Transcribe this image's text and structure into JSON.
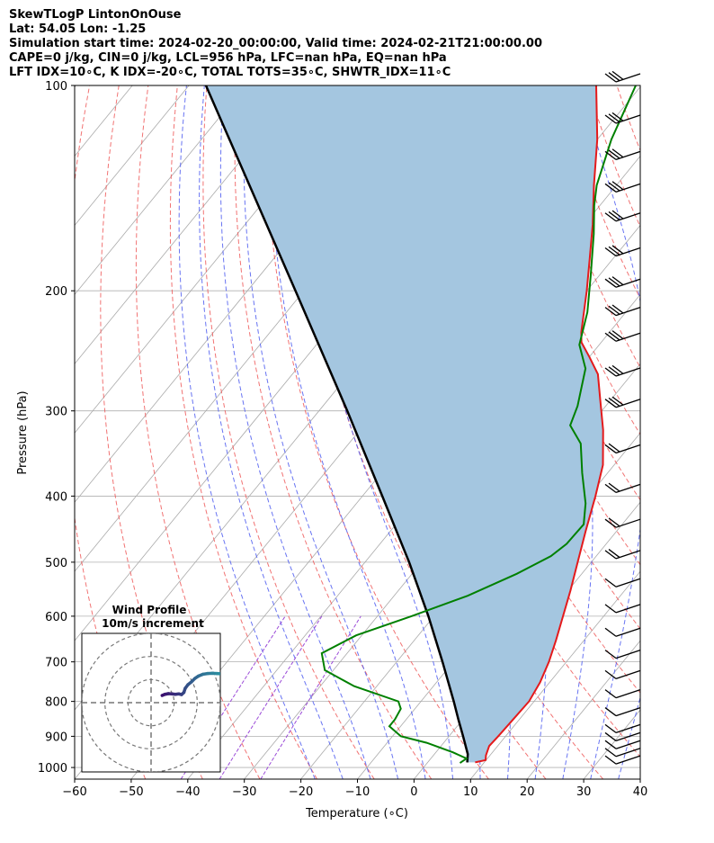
{
  "header": {
    "line1": "SkewTLogP LintonOnOuse",
    "line2": "Lat: 54.05   Lon: -1.25",
    "line3": "Simulation start time: 2024-02-20_00:00:00, Valid time: 2024-02-21T21:00:00.00",
    "line4": "CAPE=0 j/kg, CIN=0 j/kg, LCL=956 hPa, LFC=nan hPa, EQ=nan hPa",
    "line5": "LFT IDX=10∘C, K IDX=-20∘C, TOTAL TOTS=35∘C, SHWTR_IDX=11∘C"
  },
  "chart_data": [
    {
      "type": "line",
      "xlabel": "Temperature (∘C)",
      "ylabel": "Pressure (hPa)",
      "xlim": [
        -60,
        40
      ],
      "ylim": [
        1040,
        100
      ],
      "yscale": "log",
      "skew": "skew-T",
      "grid": true,
      "x_ticks": [
        -60,
        -50,
        -40,
        -30,
        -20,
        -10,
        0,
        10,
        20,
        30,
        40
      ],
      "y_ticks": [
        1000,
        900,
        800,
        700,
        600,
        500,
        400,
        300,
        200,
        100
      ],
      "colors": {
        "temperature": "#e41a1c",
        "dewpoint": "#008000",
        "parcel": "#000000",
        "cape_fill": "#a4c6e0",
        "dry_adiabat": "#ef5b5b",
        "moist_adiabat": "#4d5cf0",
        "mixing_ratio": "#9b4bd8",
        "isotherm": "#aaaaaa"
      },
      "series": [
        {
          "key": "temperature",
          "points": [
            [
              983,
              8.4
            ],
            [
              975,
              9.9
            ],
            [
              960,
              9.3
            ],
            [
              930,
              8.5
            ],
            [
              900,
              8.7
            ],
            [
              850,
              8.9
            ],
            [
              800,
              9.1
            ],
            [
              750,
              8.3
            ],
            [
              700,
              6.9
            ],
            [
              650,
              5.0
            ],
            [
              600,
              2.8
            ],
            [
              550,
              0.4
            ],
            [
              500,
              -2.4
            ],
            [
              450,
              -5.5
            ],
            [
              400,
              -8.8
            ],
            [
              360,
              -12.0
            ],
            [
              320,
              -17.0
            ],
            [
              290,
              -21.7
            ],
            [
              265,
              -26.0
            ],
            [
              250,
              -30.0
            ],
            [
              238,
              -33.5
            ],
            [
              230,
              -35.0
            ],
            [
              200,
              -40.0
            ],
            [
              180,
              -44.0
            ],
            [
              160,
              -48.5
            ],
            [
              140,
              -54.0
            ],
            [
              120,
              -60.0
            ],
            [
              100,
              -68.0
            ]
          ]
        },
        {
          "key": "dewpoint",
          "points": [
            [
              985,
              5.8
            ],
            [
              970,
              6.3
            ],
            [
              950,
              3.0
            ],
            [
              920,
              -3.0
            ],
            [
              900,
              -8.5
            ],
            [
              870,
              -12.0
            ],
            [
              850,
              -12.0
            ],
            [
              820,
              -12.5
            ],
            [
              800,
              -14.0
            ],
            [
              760,
              -24.0
            ],
            [
              720,
              -31.5
            ],
            [
              680,
              -34.5
            ],
            [
              640,
              -31.0
            ],
            [
              600,
              -24.0
            ],
            [
              560,
              -17.0
            ],
            [
              520,
              -11.5
            ],
            [
              490,
              -8.0
            ],
            [
              470,
              -7.0
            ],
            [
              440,
              -6.8
            ],
            [
              410,
              -9.5
            ],
            [
              370,
              -14.5
            ],
            [
              335,
              -19.0
            ],
            [
              315,
              -23.5
            ],
            [
              295,
              -25.0
            ],
            [
              260,
              -29.0
            ],
            [
              240,
              -33.5
            ],
            [
              215,
              -36.8
            ],
            [
              190,
              -41.5
            ],
            [
              165,
              -47.0
            ],
            [
              150,
              -51.0
            ],
            [
              140,
              -53.5
            ],
            [
              120,
              -57.5
            ],
            [
              100,
              -61.0
            ]
          ]
        },
        {
          "key": "parcel",
          "points": [
            [
              983,
              7.0
            ],
            [
              956,
              5.9
            ],
            [
              900,
              2.5
            ],
            [
              850,
              -0.8
            ],
            [
              800,
              -4.2
            ],
            [
              700,
              -11.9
            ],
            [
              600,
              -21.0
            ],
            [
              500,
              -32.2
            ],
            [
              400,
              -46.5
            ],
            [
              300,
              -65.0
            ],
            [
              200,
              -91.5
            ],
            [
              100,
              -137.0
            ]
          ]
        }
      ],
      "wind_barbs_pressure_levels": [
        1000,
        975,
        950,
        925,
        900,
        850,
        800,
        750,
        700,
        650,
        600,
        550,
        500,
        450,
        400,
        350,
        300,
        270,
        240,
        220,
        200,
        180,
        160,
        145,
        130,
        115,
        100
      ]
    },
    {
      "type": "line",
      "title": "Wind Profile",
      "subtitle": "10m/s increment",
      "xlim": [
        -30,
        30
      ],
      "ylim": [
        -30,
        30
      ],
      "rings": [
        10,
        20,
        30
      ],
      "colors": {
        "trace_low": "#3b0f6f",
        "trace_high": "#2c8c9f",
        "rings": "#777777"
      },
      "hodograph_uv": [
        [
          4.8,
          3.1
        ],
        [
          6.0,
          3.6
        ],
        [
          7.5,
          3.9
        ],
        [
          9.0,
          3.8
        ],
        [
          10.5,
          3.6
        ],
        [
          12.0,
          3.8
        ],
        [
          13.2,
          3.5
        ],
        [
          14.2,
          4.4
        ],
        [
          14.8,
          6.2
        ],
        [
          16.0,
          7.8
        ],
        [
          17.5,
          9.0
        ],
        [
          19.0,
          10.5
        ],
        [
          20.5,
          11.5
        ],
        [
          22.5,
          12.3
        ],
        [
          24.5,
          12.6
        ],
        [
          26.5,
          12.7
        ],
        [
          28.5,
          12.6
        ],
        [
          30.0,
          12.5
        ]
      ]
    }
  ]
}
